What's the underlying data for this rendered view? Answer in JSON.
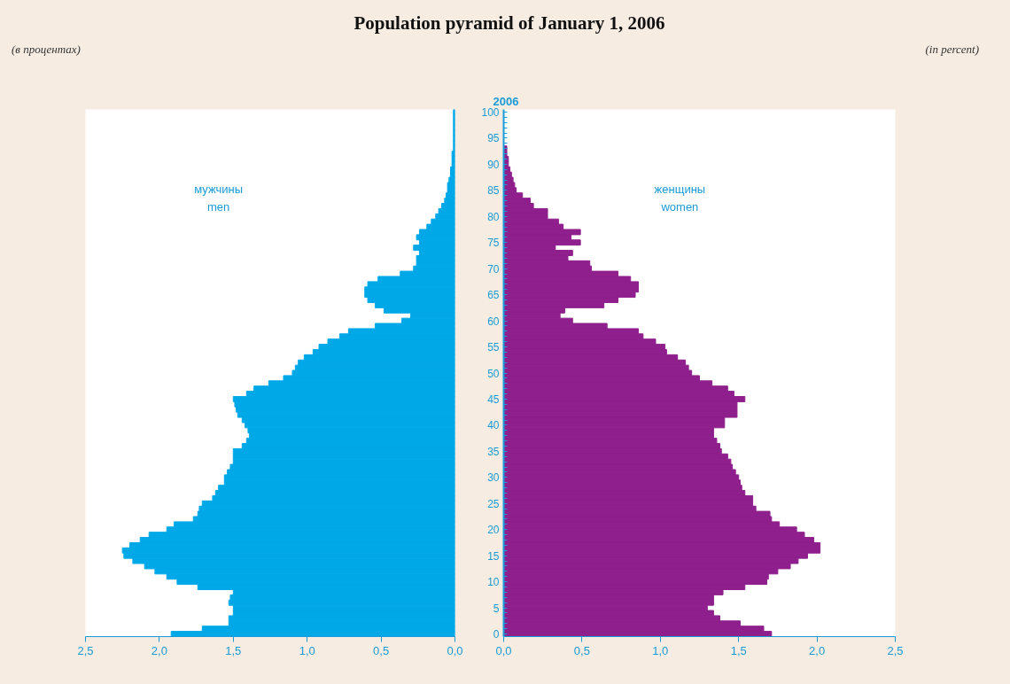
{
  "chart_data": [
    {
      "type": "bar",
      "orientation": "horizontal",
      "title": "Population pyramid of January 1, 2006",
      "tick_labels": "x",
      "grid": false,
      "annotations": [
        "(в процентах)",
        "мужчины",
        "men"
      ],
      "categories": [
        "100",
        null,
        null,
        null,
        null,
        "95",
        null,
        null,
        null,
        null,
        "90",
        null,
        null,
        null,
        null,
        "85",
        null,
        null,
        null,
        null,
        "80",
        null,
        null,
        null,
        null,
        "75",
        null,
        null,
        null,
        null,
        "70",
        null,
        null,
        null,
        null,
        "65",
        null,
        null,
        null,
        null,
        "60",
        null,
        null,
        null,
        null,
        "55",
        null,
        null,
        null,
        null,
        "50",
        null,
        null,
        null,
        null,
        "45",
        null,
        null,
        null,
        null,
        "40",
        null,
        null,
        null,
        null,
        "35",
        null,
        null,
        null,
        null,
        "30",
        null,
        null,
        null,
        null,
        "25",
        null,
        null,
        null,
        null,
        "20",
        null,
        null,
        null,
        null,
        "15",
        null,
        null,
        null,
        null,
        "10",
        null,
        null,
        null,
        null,
        "5",
        null,
        null,
        null,
        null,
        "0"
      ],
      "color": "#00a8e8",
      "values": [
        0.01,
        0.01,
        0.01,
        0.01,
        0.01,
        0.01,
        0.01,
        0.01,
        0.02,
        0.02,
        0.02,
        0.03,
        0.03,
        0.04,
        0.05,
        0.05,
        0.06,
        0.07,
        0.09,
        0.11,
        0.13,
        0.16,
        0.19,
        0.24,
        0.26,
        0.24,
        0.28,
        0.24,
        0.26,
        0.26,
        0.28,
        0.37,
        0.52,
        0.59,
        0.61,
        0.61,
        0.59,
        0.54,
        0.48,
        0.3,
        0.36,
        0.54,
        0.72,
        0.78,
        0.86,
        0.92,
        0.96,
        1.02,
        1.06,
        1.08,
        1.1,
        1.16,
        1.26,
        1.36,
        1.41,
        1.5,
        1.49,
        1.48,
        1.47,
        1.44,
        1.42,
        1.4,
        1.39,
        1.41,
        1.44,
        1.5,
        1.5,
        1.5,
        1.52,
        1.54,
        1.56,
        1.56,
        1.6,
        1.62,
        1.64,
        1.71,
        1.73,
        1.74,
        1.77,
        1.9,
        1.95,
        2.07,
        2.13,
        2.2,
        2.25,
        2.24,
        2.18,
        2.1,
        2.03,
        1.95,
        1.88,
        1.74,
        1.5,
        1.52,
        1.53,
        1.5,
        1.5,
        1.53,
        1.53,
        1.71,
        1.92
      ],
      "xlim": [
        2.5,
        0
      ],
      "xticks": [
        {
          "value": 2.5,
          "label": "2,5"
        },
        {
          "value": 2.0,
          "label": "2,0"
        },
        {
          "value": 1.5,
          "label": "1,5"
        },
        {
          "value": 1.0,
          "label": "1,0"
        },
        {
          "value": 0.5,
          "label": "0,5"
        },
        {
          "value": 0,
          "label": "0,0"
        }
      ]
    },
    {
      "type": "bar",
      "orientation": "horizontal",
      "subtitle": "2006",
      "grid": false,
      "annotations": [
        "(in percent)",
        "женщины",
        "women"
      ],
      "categories": [
        "100",
        null,
        null,
        null,
        null,
        "95",
        null,
        null,
        null,
        null,
        "90",
        null,
        null,
        null,
        null,
        "85",
        null,
        null,
        null,
        null,
        "80",
        null,
        null,
        null,
        null,
        "75",
        null,
        null,
        null,
        null,
        "70",
        null,
        null,
        null,
        null,
        "65",
        null,
        null,
        null,
        null,
        "60",
        null,
        null,
        null,
        null,
        "55",
        null,
        null,
        null,
        null,
        "50",
        null,
        null,
        null,
        null,
        "45",
        null,
        null,
        null,
        null,
        "40",
        null,
        null,
        null,
        null,
        "35",
        null,
        null,
        null,
        null,
        "30",
        null,
        null,
        null,
        null,
        "25",
        null,
        null,
        null,
        null,
        "20",
        null,
        null,
        null,
        null,
        "15",
        null,
        null,
        null,
        null,
        "10",
        null,
        null,
        null,
        null,
        "5",
        null,
        null,
        null,
        null,
        "0"
      ],
      "color": "#8e1f8c",
      "values": [
        null,
        null,
        null,
        null,
        null,
        null,
        null,
        0.02,
        0.02,
        0.03,
        0.03,
        0.04,
        0.05,
        0.06,
        0.07,
        0.08,
        0.12,
        0.17,
        0.19,
        0.28,
        0.28,
        0.35,
        0.38,
        0.49,
        0.43,
        0.49,
        0.33,
        0.44,
        0.41,
        0.55,
        0.56,
        0.73,
        0.81,
        0.86,
        0.86,
        0.84,
        0.73,
        0.64,
        0.39,
        0.36,
        0.44,
        0.66,
        0.86,
        0.89,
        0.97,
        1.03,
        1.04,
        1.11,
        1.16,
        1.18,
        1.2,
        1.25,
        1.33,
        1.43,
        1.47,
        1.54,
        1.49,
        1.49,
        1.49,
        1.41,
        1.41,
        1.34,
        1.34,
        1.36,
        1.38,
        1.39,
        1.43,
        1.45,
        1.46,
        1.48,
        1.5,
        1.51,
        1.52,
        1.54,
        1.59,
        1.59,
        1.61,
        1.7,
        1.71,
        1.76,
        1.87,
        1.92,
        1.98,
        2.02,
        2.02,
        1.94,
        1.88,
        1.83,
        1.75,
        1.69,
        1.68,
        1.54,
        1.4,
        1.34,
        1.34,
        1.3,
        1.34,
        1.38,
        1.51,
        1.66,
        1.71
      ],
      "xlim": [
        0,
        2.5
      ],
      "xticks": [
        {
          "value": 0,
          "label": "0,0"
        },
        {
          "value": 0.5,
          "label": "0,5"
        },
        {
          "value": 1.0,
          "label": "1,0"
        },
        {
          "value": 1.5,
          "label": "1,5"
        },
        {
          "value": 2.0,
          "label": "2,0"
        },
        {
          "value": 2.5,
          "label": "2,5"
        }
      ]
    }
  ]
}
